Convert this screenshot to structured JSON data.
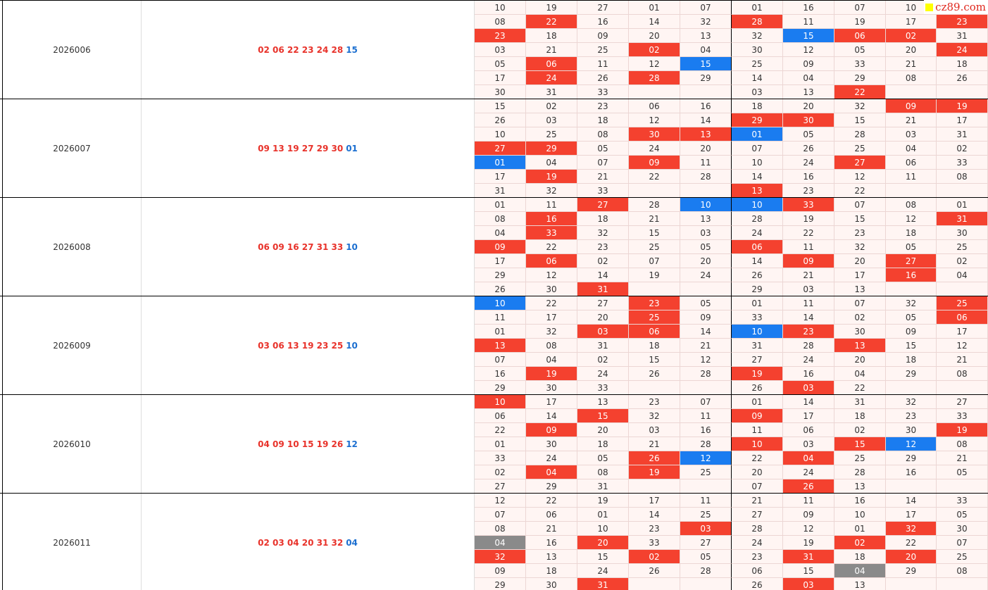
{
  "watermark": "cz89.com",
  "highlight_colors": {
    "r": "#f4412f",
    "b": "#1a7cf0",
    "g": "#8a8a8a"
  },
  "blocks": [
    {
      "period": "2026006",
      "red": "02 06 22 23 24 28",
      "blue": "15",
      "cells": [
        [
          "10",
          "19",
          "27",
          "01",
          "07",
          "01",
          "16",
          "07",
          "10",
          null
        ],
        [
          "08",
          {
            "text": "22",
            "hl": "r"
          },
          "16",
          "14",
          "32",
          {
            "text": "28",
            "hl": "r"
          },
          "11",
          "19",
          "17",
          {
            "text": "23",
            "hl": "r"
          }
        ],
        [
          {
            "text": "23",
            "hl": "r"
          },
          "18",
          "09",
          "20",
          "13",
          "32",
          {
            "text": "15",
            "hl": "b"
          },
          {
            "text": "06",
            "hl": "r"
          },
          {
            "text": "02",
            "hl": "r"
          },
          "31"
        ],
        [
          "03",
          "21",
          "25",
          {
            "text": "02",
            "hl": "r"
          },
          "04",
          "30",
          "12",
          "05",
          "20",
          {
            "text": "24",
            "hl": "r"
          }
        ],
        [
          "05",
          {
            "text": "06",
            "hl": "r"
          },
          "11",
          "12",
          {
            "text": "15",
            "hl": "b"
          },
          "25",
          "09",
          "33",
          "21",
          "18"
        ],
        [
          "17",
          {
            "text": "24",
            "hl": "r"
          },
          "26",
          {
            "text": "28",
            "hl": "r"
          },
          "29",
          "14",
          "04",
          "29",
          "08",
          "26"
        ],
        [
          "30",
          "31",
          "33",
          null,
          null,
          "03",
          "13",
          {
            "text": "22",
            "hl": "r"
          },
          null,
          null
        ]
      ]
    },
    {
      "period": "2026007",
      "red": "09 13 19 27 29 30",
      "blue": "01",
      "cells": [
        [
          "15",
          "02",
          "23",
          "06",
          "16",
          "18",
          "20",
          "32",
          {
            "text": "09",
            "hl": "r"
          },
          {
            "text": "19",
            "hl": "r"
          }
        ],
        [
          "26",
          "03",
          "18",
          "12",
          "14",
          {
            "text": "29",
            "hl": "r"
          },
          {
            "text": "30",
            "hl": "r"
          },
          "15",
          "21",
          "17"
        ],
        [
          "10",
          "25",
          "08",
          {
            "text": "30",
            "hl": "r"
          },
          {
            "text": "13",
            "hl": "r"
          },
          {
            "text": "01",
            "hl": "b"
          },
          "05",
          "28",
          "03",
          "31"
        ],
        [
          {
            "text": "27",
            "hl": "r"
          },
          {
            "text": "29",
            "hl": "r"
          },
          "05",
          "24",
          "20",
          "07",
          "26",
          "25",
          "04",
          "02"
        ],
        [
          {
            "text": "01",
            "hl": "b"
          },
          "04",
          "07",
          {
            "text": "09",
            "hl": "r"
          },
          "11",
          "10",
          "24",
          {
            "text": "27",
            "hl": "r"
          },
          "06",
          "33"
        ],
        [
          "17",
          {
            "text": "19",
            "hl": "r"
          },
          "21",
          "22",
          "28",
          "14",
          "16",
          "12",
          "11",
          "08"
        ],
        [
          "31",
          "32",
          "33",
          null,
          null,
          {
            "text": "13",
            "hl": "r"
          },
          "23",
          "22",
          null,
          null
        ]
      ]
    },
    {
      "period": "2026008",
      "red": "06 09 16 27 31 33",
      "blue": "10",
      "cells": [
        [
          "01",
          "11",
          {
            "text": "27",
            "hl": "r"
          },
          "28",
          {
            "text": "10",
            "hl": "b"
          },
          {
            "text": "10",
            "hl": "b"
          },
          {
            "text": "33",
            "hl": "r"
          },
          "07",
          "08",
          "01"
        ],
        [
          "08",
          {
            "text": "16",
            "hl": "r"
          },
          "18",
          "21",
          "13",
          "28",
          "19",
          "15",
          "12",
          {
            "text": "31",
            "hl": "r"
          }
        ],
        [
          "04",
          {
            "text": "33",
            "hl": "r"
          },
          "32",
          "15",
          "03",
          "24",
          "22",
          "23",
          "18",
          "30"
        ],
        [
          {
            "text": "09",
            "hl": "r"
          },
          "22",
          "23",
          "25",
          "05",
          {
            "text": "06",
            "hl": "r"
          },
          "11",
          "32",
          "05",
          "25"
        ],
        [
          "17",
          {
            "text": "06",
            "hl": "r"
          },
          "02",
          "07",
          "20",
          "14",
          {
            "text": "09",
            "hl": "r"
          },
          "20",
          {
            "text": "27",
            "hl": "r"
          },
          "02"
        ],
        [
          "29",
          "12",
          "14",
          "19",
          "24",
          "26",
          "21",
          "17",
          {
            "text": "16",
            "hl": "r"
          },
          "04"
        ],
        [
          "26",
          "30",
          {
            "text": "31",
            "hl": "r"
          },
          null,
          null,
          "29",
          "03",
          "13",
          null,
          null
        ]
      ]
    },
    {
      "period": "2026009",
      "red": "03 06 13 19 23 25",
      "blue": "10",
      "cells": [
        [
          {
            "text": "10",
            "hl": "b"
          },
          "22",
          "27",
          {
            "text": "23",
            "hl": "r"
          },
          "05",
          "01",
          "11",
          "07",
          "32",
          {
            "text": "25",
            "hl": "r"
          }
        ],
        [
          "11",
          "17",
          "20",
          {
            "text": "25",
            "hl": "r"
          },
          "09",
          "33",
          "14",
          "02",
          "05",
          {
            "text": "06",
            "hl": "r"
          }
        ],
        [
          "01",
          "32",
          {
            "text": "03",
            "hl": "r"
          },
          {
            "text": "06",
            "hl": "r"
          },
          "14",
          {
            "text": "10",
            "hl": "b"
          },
          {
            "text": "23",
            "hl": "r"
          },
          "30",
          "09",
          "17"
        ],
        [
          {
            "text": "13",
            "hl": "r"
          },
          "08",
          "31",
          "18",
          "21",
          "31",
          "28",
          {
            "text": "13",
            "hl": "r"
          },
          "15",
          "12"
        ],
        [
          "07",
          "04",
          "02",
          "15",
          "12",
          "27",
          "24",
          "20",
          "18",
          "21"
        ],
        [
          "16",
          {
            "text": "19",
            "hl": "r"
          },
          "24",
          "26",
          "28",
          {
            "text": "19",
            "hl": "r"
          },
          "16",
          "04",
          "29",
          "08"
        ],
        [
          "29",
          "30",
          "33",
          null,
          null,
          "26",
          {
            "text": "03",
            "hl": "r"
          },
          "22",
          null,
          null
        ]
      ]
    },
    {
      "period": "2026010",
      "red": "04 09 10 15 19 26",
      "blue": "12",
      "cells": [
        [
          {
            "text": "10",
            "hl": "r"
          },
          "17",
          "13",
          "23",
          "07",
          "01",
          "14",
          "31",
          "32",
          "27"
        ],
        [
          "06",
          "14",
          {
            "text": "15",
            "hl": "r"
          },
          "32",
          "11",
          {
            "text": "09",
            "hl": "r"
          },
          "17",
          "18",
          "23",
          "33"
        ],
        [
          "22",
          {
            "text": "09",
            "hl": "r"
          },
          "20",
          "03",
          "16",
          "11",
          "06",
          "02",
          "30",
          {
            "text": "19",
            "hl": "r"
          }
        ],
        [
          "01",
          "30",
          "18",
          "21",
          "28",
          {
            "text": "10",
            "hl": "r"
          },
          "03",
          {
            "text": "15",
            "hl": "r"
          },
          {
            "text": "12",
            "hl": "b"
          },
          "08"
        ],
        [
          "33",
          "24",
          "05",
          {
            "text": "26",
            "hl": "r"
          },
          {
            "text": "12",
            "hl": "b"
          },
          "22",
          {
            "text": "04",
            "hl": "r"
          },
          "25",
          "29",
          "21"
        ],
        [
          "02",
          {
            "text": "04",
            "hl": "r"
          },
          "08",
          {
            "text": "19",
            "hl": "r"
          },
          "25",
          "20",
          "24",
          "28",
          "16",
          "05"
        ],
        [
          "27",
          "29",
          "31",
          null,
          null,
          "07",
          {
            "text": "26",
            "hl": "r"
          },
          "13",
          null,
          null
        ]
      ]
    },
    {
      "period": "2026011",
      "red": "02 03 04 20 31 32",
      "blue": "04",
      "cells": [
        [
          "12",
          "22",
          "19",
          "17",
          "11",
          "21",
          "11",
          "16",
          "14",
          "33"
        ],
        [
          "07",
          "06",
          "01",
          "14",
          "25",
          "27",
          "09",
          "10",
          "17",
          "05"
        ],
        [
          "08",
          "21",
          "10",
          "23",
          {
            "text": "03",
            "hl": "r"
          },
          "28",
          "12",
          "01",
          {
            "text": "32",
            "hl": "r"
          },
          "30"
        ],
        [
          {
            "text": "04",
            "hl": "g"
          },
          "16",
          {
            "text": "20",
            "hl": "r"
          },
          "33",
          "27",
          "24",
          "19",
          {
            "text": "02",
            "hl": "r"
          },
          "22",
          "07"
        ],
        [
          {
            "text": "32",
            "hl": "r"
          },
          "13",
          "15",
          {
            "text": "02",
            "hl": "r"
          },
          "05",
          "23",
          {
            "text": "31",
            "hl": "r"
          },
          "18",
          {
            "text": "20",
            "hl": "r"
          },
          "25"
        ],
        [
          "09",
          "18",
          "24",
          "26",
          "28",
          "06",
          "15",
          {
            "text": "04",
            "hl": "g"
          },
          "29",
          "08"
        ],
        [
          "29",
          "30",
          {
            "text": "31",
            "hl": "r"
          },
          null,
          null,
          "26",
          {
            "text": "03",
            "hl": "r"
          },
          "13",
          null,
          null
        ]
      ]
    }
  ]
}
